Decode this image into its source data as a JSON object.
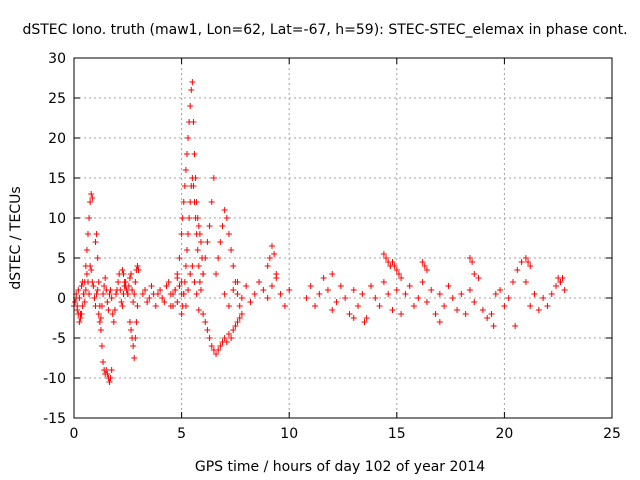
{
  "chart_data": {
    "type": "scatter",
    "title": "dSTEC Iono. truth (maw1, Lon=62, Lat=-67, h=59): STEC-STEC_elemax in phase cont.",
    "xlabel": "GPS time / hours of day 102 of year 2014",
    "ylabel": "dSTEC  / TECUs",
    "xlim": [
      0,
      25
    ],
    "ylim": [
      -15,
      30
    ],
    "xticks": [
      0,
      5,
      10,
      15,
      20,
      25
    ],
    "yticks": [
      -15,
      -10,
      -5,
      0,
      5,
      10,
      15,
      20,
      25,
      30
    ],
    "xtick_labels": [
      "0",
      "5",
      "10",
      "15",
      "20",
      "25"
    ],
    "ytick_labels": [
      "-15",
      "-10",
      "-5",
      "0",
      "5",
      "10",
      "15",
      "20",
      "25",
      "30"
    ],
    "grid": true,
    "marker": "plus",
    "color": "#ff0000",
    "series": [
      {
        "x": [
          0.0,
          0.05,
          0.1,
          0.15,
          0.2,
          0.25,
          0.3,
          0.35,
          0.4,
          0.45,
          0.5,
          0.55,
          0.6,
          0.65,
          0.7,
          0.75,
          0.8,
          0.85,
          0.9,
          0.95,
          1.0,
          1.05,
          1.1,
          1.15,
          1.2,
          1.25,
          1.3,
          1.35,
          1.4,
          1.45,
          1.5,
          1.55,
          1.6,
          1.65,
          1.7,
          1.75,
          1.8,
          1.85,
          1.9,
          1.95,
          2.0,
          2.05,
          2.1,
          2.15,
          2.2,
          2.25,
          2.3,
          2.35,
          2.4,
          2.45,
          2.5,
          2.55,
          2.6,
          2.65,
          2.7,
          2.75,
          2.8,
          2.85,
          2.9,
          2.95,
          3.0,
          0.55,
          0.6,
          0.65,
          0.7,
          0.75,
          0.8,
          0.85,
          0.5,
          0.45,
          0.4,
          0.35,
          0.3,
          0.25,
          0.2,
          0.15,
          0.1,
          1.0,
          1.05,
          1.1,
          1.15,
          1.2,
          1.25,
          1.3,
          1.35,
          1.4,
          1.45,
          1.5,
          1.55,
          1.6,
          1.65,
          1.7,
          1.75,
          2.6,
          2.65,
          2.7,
          2.75,
          2.8,
          2.85,
          2.9,
          2.95,
          2.5,
          2.45,
          2.4,
          2.35,
          2.3,
          2.25,
          3.2,
          3.3,
          3.4,
          3.5,
          3.6,
          3.7,
          3.8,
          3.9,
          4.0,
          4.1,
          4.2,
          4.3,
          4.4,
          4.5,
          4.6,
          4.7,
          4.8,
          4.9,
          5.0,
          4.8,
          4.9,
          5.0,
          5.05,
          5.1,
          5.15,
          5.2,
          5.25,
          5.3,
          5.35,
          5.4,
          5.45,
          5.5,
          5.55,
          5.6,
          5.65,
          5.7,
          5.75,
          5.8,
          5.85,
          5.9,
          5.95,
          6.0,
          5.0,
          5.05,
          5.1,
          5.15,
          5.2,
          5.25,
          5.3,
          5.35,
          5.4,
          5.45,
          5.5,
          5.55,
          5.6,
          5.65,
          5.7,
          5.75,
          5.8,
          5.85,
          4.5,
          4.6,
          4.7,
          4.8,
          4.9,
          5.0,
          5.1,
          5.2,
          5.3,
          5.4,
          5.5,
          5.6,
          5.7,
          5.8,
          5.9,
          6.0,
          6.1,
          6.2,
          6.3,
          6.4,
          6.5,
          6.0,
          6.1,
          6.2,
          6.3,
          6.4,
          6.5,
          6.6,
          6.7,
          6.8,
          6.9,
          7.0,
          7.1,
          7.2,
          7.3,
          7.4,
          7.5,
          7.6,
          7.7,
          6.6,
          6.7,
          6.8,
          6.9,
          7.0,
          7.1,
          7.2,
          7.3,
          7.4,
          7.5,
          7.6,
          7.7,
          7.8,
          7.0,
          7.2,
          7.4,
          7.6,
          7.8,
          8.0,
          8.2,
          8.4,
          8.6,
          8.8,
          9.0,
          9.2,
          9.4,
          9.6,
          9.8,
          10.0,
          9.0,
          9.1,
          9.2,
          9.3,
          9.4,
          10.8,
          11.0,
          11.2,
          11.4,
          11.6,
          11.8,
          12.0,
          12.2,
          12.4,
          12.6,
          12.8,
          13.0,
          13.2,
          13.4,
          13.6,
          13.8,
          14.0,
          14.2,
          14.4,
          14.6,
          14.8,
          15.0,
          15.2,
          15.4,
          15.6,
          15.8,
          16.0,
          16.2,
          16.4,
          16.6,
          16.8,
          17.0,
          17.2,
          17.4,
          17.6,
          17.8,
          18.0,
          18.2,
          18.4,
          18.6,
          18.8,
          19.0,
          19.2,
          19.4,
          19.6,
          19.8,
          20.0,
          20.2,
          20.4,
          20.6,
          20.8,
          21.0,
          21.2,
          21.4,
          21.6,
          21.8,
          22.0,
          22.2,
          22.4,
          22.6,
          22.8,
          14.4,
          14.5,
          14.6,
          14.7,
          14.8,
          14.9,
          15.0,
          15.1,
          15.2,
          16.2,
          16.3,
          16.4,
          18.4,
          18.5,
          18.6,
          21.0,
          21.1,
          21.2,
          22.5,
          22.6,
          22.7,
          12.0,
          13.0,
          13.5,
          17.0,
          19.5,
          20.5
        ],
        "y": [
          -1.0,
          -0.5,
          0.5,
          -1.5,
          1.0,
          0.0,
          -2.0,
          1.5,
          2.0,
          0.5,
          -0.5,
          1.0,
          3.0,
          2.0,
          0.5,
          4.0,
          3.5,
          2.0,
          1.5,
          0.0,
          -1.0,
          0.5,
          1.0,
          -2.0,
          -3.0,
          -2.5,
          -1.0,
          0.5,
          1.5,
          2.5,
          1.0,
          -0.5,
          -1.5,
          0.5,
          1.0,
          0.0,
          -2.0,
          -3.0,
          -1.5,
          0.5,
          1.0,
          2.0,
          3.0,
          1.0,
          -0.5,
          -1.0,
          0.5,
          1.5,
          2.0,
          1.0,
          0.5,
          1.5,
          2.5,
          3.0,
          1.0,
          -0.5,
          0.5,
          2.0,
          3.5,
          4.0,
          3.5,
          4.0,
          6.0,
          8.0,
          10.0,
          12.0,
          13.0,
          12.5,
          2.0,
          0.5,
          -1.0,
          -2.0,
          -2.5,
          -3.0,
          -2.0,
          -1.0,
          0.0,
          7.0,
          8.0,
          5.0,
          2.0,
          -1.0,
          -4.0,
          -6.0,
          -8.0,
          -9.0,
          -9.5,
          -9.0,
          -9.5,
          -10.0,
          -10.5,
          -10.0,
          -9.0,
          -3.0,
          -4.0,
          -5.0,
          -6.0,
          -7.5,
          -5.0,
          -3.0,
          -1.0,
          0.5,
          1.0,
          1.5,
          2.0,
          3.0,
          3.5,
          0.5,
          1.0,
          -0.5,
          0.0,
          1.5,
          0.5,
          -1.0,
          0.5,
          1.0,
          0.0,
          -0.5,
          1.5,
          2.0,
          0.5,
          -1.0,
          1.0,
          2.5,
          1.5,
          0.5,
          3.0,
          5.0,
          8.0,
          10.0,
          12.0,
          14.0,
          16.0,
          18.0,
          20.0,
          22.0,
          24.0,
          26.0,
          27.0,
          22.0,
          18.0,
          15.0,
          12.0,
          10.0,
          9.0,
          8.0,
          7.0,
          5.0,
          3.0,
          -2.0,
          -1.0,
          0.5,
          2.0,
          4.0,
          6.0,
          8.0,
          10.0,
          12.0,
          14.0,
          15.0,
          14.0,
          12.0,
          10.0,
          8.0,
          6.0,
          4.0,
          2.0,
          -1.0,
          0.5,
          1.0,
          -0.5,
          1.5,
          2.0,
          0.5,
          -1.0,
          1.0,
          3.0,
          4.0,
          2.0,
          0.5,
          -1.5,
          1.0,
          3.0,
          5.0,
          7.0,
          9.0,
          12.0,
          15.0,
          -2.0,
          -3.0,
          -4.0,
          -5.0,
          -6.0,
          -6.5,
          -7.0,
          -6.5,
          -6.0,
          -5.5,
          -5.0,
          -5.5,
          -4.5,
          -5.0,
          -4.0,
          -3.5,
          -3.0,
          -2.5,
          3.0,
          5.0,
          7.0,
          9.0,
          11.0,
          10.0,
          8.0,
          6.0,
          4.0,
          2.0,
          0.5,
          -1.0,
          -2.0,
          0.5,
          -1.0,
          1.0,
          2.0,
          0.0,
          1.5,
          -0.5,
          0.5,
          2.0,
          1.0,
          0.0,
          1.5,
          2.5,
          0.5,
          -1.0,
          1.0,
          4.0,
          5.0,
          6.5,
          5.5,
          3.0,
          0.0,
          1.5,
          -1.0,
          0.5,
          2.5,
          1.0,
          -1.5,
          -0.5,
          1.5,
          0.0,
          -2.0,
          1.0,
          -1.0,
          0.5,
          -2.5,
          1.5,
          0.0,
          -1.0,
          2.0,
          0.5,
          -1.5,
          1.0,
          -2.0,
          0.5,
          1.5,
          -1.0,
          0.0,
          2.0,
          -0.5,
          1.0,
          -2.0,
          0.5,
          -1.0,
          1.5,
          0.0,
          -1.5,
          0.5,
          -2.0,
          1.0,
          -0.5,
          2.5,
          -1.5,
          -2.5,
          -2.0,
          0.5,
          1.0,
          -1.0,
          0.0,
          2.0,
          3.5,
          4.5,
          2.0,
          -1.0,
          0.5,
          -1.5,
          0.0,
          -1.0,
          0.5,
          1.5,
          2.0,
          1.0,
          5.5,
          5.0,
          4.5,
          4.0,
          4.5,
          4.0,
          3.5,
          3.0,
          2.5,
          4.5,
          4.0,
          3.5,
          5.0,
          4.5,
          3.0,
          5.0,
          4.5,
          4.0,
          2.5,
          2.0,
          2.5,
          3.0,
          -2.5,
          -3.0,
          -3.0,
          -3.5,
          -3.5
        ]
      }
    ]
  }
}
